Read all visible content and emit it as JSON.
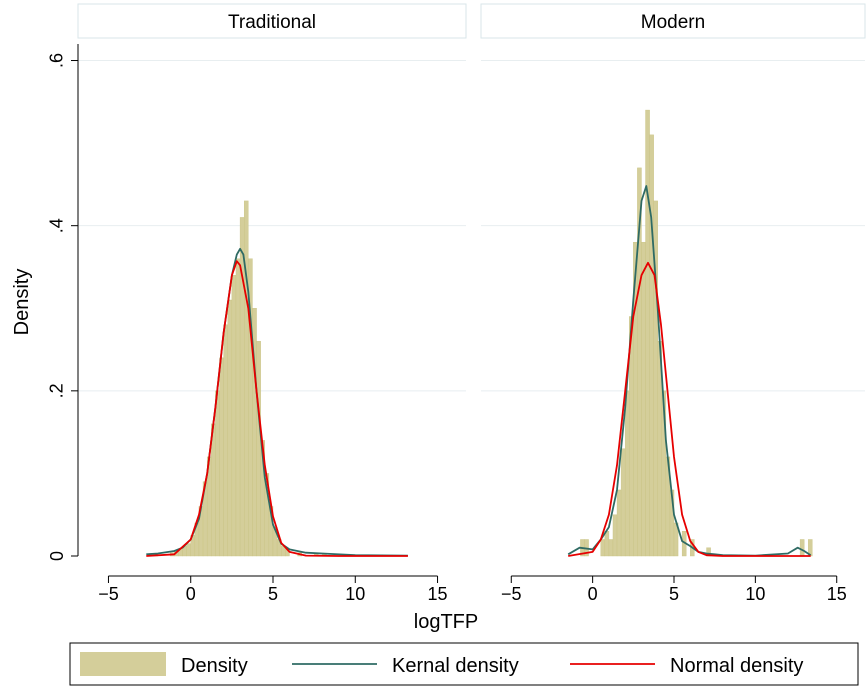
{
  "chart_data": {
    "type": "histogram",
    "title": "",
    "xlabel": "logTFP",
    "ylabel": "Density",
    "xlim": [
      -6,
      16
    ],
    "ylim": [
      0,
      0.62
    ],
    "xticks": [
      -5,
      0,
      5,
      10,
      15
    ],
    "yticks": [
      0,
      0.2,
      0.4,
      0.6
    ],
    "xtick_labels": [
      "−5",
      "0",
      "5",
      "10",
      "15"
    ],
    "ytick_labels": [
      "0",
      ".2",
      ".4",
      ".6"
    ],
    "grid": true,
    "legend_placement": "bottom",
    "panels": [
      {
        "label": "Traditional",
        "histogram": {
          "bin_width": 0.25,
          "bins": [
            {
              "x": -2.5,
              "y": 0.003
            },
            {
              "x": -2.25,
              "y": 0.003
            },
            {
              "x": -1.25,
              "y": 0.004
            },
            {
              "x": -1.0,
              "y": 0.006
            },
            {
              "x": -0.75,
              "y": 0.008
            },
            {
              "x": -0.5,
              "y": 0.012
            },
            {
              "x": -0.25,
              "y": 0.015
            },
            {
              "x": 0.0,
              "y": 0.025
            },
            {
              "x": 0.25,
              "y": 0.04
            },
            {
              "x": 0.5,
              "y": 0.06
            },
            {
              "x": 0.75,
              "y": 0.09
            },
            {
              "x": 1.0,
              "y": 0.12
            },
            {
              "x": 1.25,
              "y": 0.16
            },
            {
              "x": 1.5,
              "y": 0.2
            },
            {
              "x": 1.75,
              "y": 0.24
            },
            {
              "x": 2.0,
              "y": 0.28
            },
            {
              "x": 2.25,
              "y": 0.31
            },
            {
              "x": 2.5,
              "y": 0.34
            },
            {
              "x": 2.75,
              "y": 0.36
            },
            {
              "x": 3.0,
              "y": 0.41
            },
            {
              "x": 3.25,
              "y": 0.43
            },
            {
              "x": 3.5,
              "y": 0.36
            },
            {
              "x": 3.75,
              "y": 0.3
            },
            {
              "x": 4.0,
              "y": 0.26
            },
            {
              "x": 4.25,
              "y": 0.14
            },
            {
              "x": 4.5,
              "y": 0.1
            },
            {
              "x": 4.75,
              "y": 0.06
            },
            {
              "x": 5.0,
              "y": 0.035
            },
            {
              "x": 5.25,
              "y": 0.02
            },
            {
              "x": 5.5,
              "y": 0.012
            },
            {
              "x": 5.75,
              "y": 0.008
            },
            {
              "x": 6.5,
              "y": 0.004
            },
            {
              "x": 7.5,
              "y": 0.003
            },
            {
              "x": 8.0,
              "y": 0.003
            }
          ]
        },
        "kernel_density": {
          "x": [
            -2.7,
            -2,
            -1,
            -0.5,
            0,
            0.5,
            1,
            1.5,
            2,
            2.5,
            2.8,
            3,
            3.2,
            3.5,
            4,
            4.5,
            5,
            5.5,
            6,
            7,
            8,
            10,
            13.2
          ],
          "y": [
            0.002,
            0.003,
            0.006,
            0.01,
            0.02,
            0.045,
            0.1,
            0.18,
            0.27,
            0.34,
            0.365,
            0.372,
            0.365,
            0.32,
            0.2,
            0.095,
            0.038,
            0.015,
            0.008,
            0.004,
            0.003,
            0.001,
            0.0005
          ]
        },
        "normal_density": {
          "x": [
            -2.7,
            -1,
            0,
            0.5,
            1,
            1.5,
            2,
            2.5,
            2.8,
            3,
            3.5,
            4,
            4.5,
            5,
            5.5,
            6,
            7,
            9,
            13.2
          ],
          "y": [
            0.0,
            0.002,
            0.02,
            0.05,
            0.1,
            0.18,
            0.27,
            0.34,
            0.357,
            0.352,
            0.3,
            0.2,
            0.11,
            0.048,
            0.016,
            0.005,
            0.0005,
            0.0,
            0.0
          ]
        }
      },
      {
        "label": "Modern",
        "histogram": {
          "bin_width": 0.25,
          "bins": [
            {
              "x": -0.75,
              "y": 0.02
            },
            {
              "x": -0.5,
              "y": 0.02
            },
            {
              "x": 0.5,
              "y": 0.02
            },
            {
              "x": 0.75,
              "y": 0.03
            },
            {
              "x": 1.0,
              "y": 0.02
            },
            {
              "x": 1.25,
              "y": 0.05
            },
            {
              "x": 1.5,
              "y": 0.08
            },
            {
              "x": 1.75,
              "y": 0.13
            },
            {
              "x": 2.0,
              "y": 0.2
            },
            {
              "x": 2.25,
              "y": 0.29
            },
            {
              "x": 2.5,
              "y": 0.38
            },
            {
              "x": 2.75,
              "y": 0.47
            },
            {
              "x": 3.0,
              "y": 0.38
            },
            {
              "x": 3.25,
              "y": 0.54
            },
            {
              "x": 3.5,
              "y": 0.51
            },
            {
              "x": 3.75,
              "y": 0.43
            },
            {
              "x": 4.0,
              "y": 0.26
            },
            {
              "x": 4.25,
              "y": 0.2
            },
            {
              "x": 4.5,
              "y": 0.12
            },
            {
              "x": 4.75,
              "y": 0.08
            },
            {
              "x": 5.0,
              "y": 0.04
            },
            {
              "x": 5.5,
              "y": 0.03
            },
            {
              "x": 6.0,
              "y": 0.02
            },
            {
              "x": 7.0,
              "y": 0.01
            },
            {
              "x": 12.75,
              "y": 0.02
            },
            {
              "x": 13.25,
              "y": 0.02
            }
          ]
        },
        "kernel_density": {
          "x": [
            -1.5,
            -0.8,
            0,
            0.5,
            1,
            1.5,
            2,
            2.5,
            3,
            3.3,
            3.6,
            4,
            4.5,
            5,
            5.5,
            6,
            6.5,
            7,
            7.5,
            8,
            10,
            12,
            12.6,
            13,
            13.4
          ],
          "y": [
            0.002,
            0.01,
            0.008,
            0.02,
            0.035,
            0.08,
            0.18,
            0.31,
            0.43,
            0.448,
            0.41,
            0.3,
            0.14,
            0.05,
            0.018,
            0.012,
            0.005,
            0.003,
            0.002,
            0.001,
            0.0005,
            0.003,
            0.01,
            0.006,
            0.001
          ]
        },
        "normal_density": {
          "x": [
            -1.5,
            0,
            0.5,
            1,
            1.5,
            2,
            2.5,
            3,
            3.4,
            3.8,
            4.2,
            4.6,
            5,
            5.5,
            6,
            6.5,
            7,
            8,
            13.4
          ],
          "y": [
            0.0,
            0.005,
            0.02,
            0.05,
            0.11,
            0.2,
            0.29,
            0.34,
            0.355,
            0.34,
            0.28,
            0.2,
            0.12,
            0.05,
            0.018,
            0.005,
            0.001,
            0.0,
            0.0
          ]
        }
      }
    ],
    "legend": [
      {
        "key": "density",
        "label": "Density"
      },
      {
        "key": "kernel",
        "label": "Kernal density"
      },
      {
        "key": "normal",
        "label": "Normal density"
      }
    ]
  },
  "colors": {
    "bar_fill": "#d4ce9a",
    "bar_stroke": "#c9c383",
    "kernel": "#2f6b64",
    "normal": "#e60000",
    "grid": "#e8eef0",
    "panel_header_border": "#d8e6ea"
  }
}
